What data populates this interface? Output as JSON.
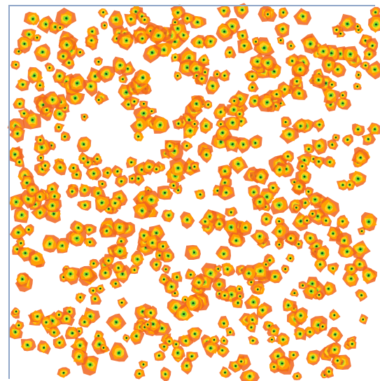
{
  "image": {
    "subject": "clusters",
    "palette": {
      "outer": "#f0641e",
      "mid": "#ffa000",
      "inner": "#ffd21e",
      "core": "#8cdc28",
      "center": "#1ea03c",
      "dot": "#0a4614",
      "border": "#8fa6c8",
      "background": "#ffffff"
    }
  }
}
